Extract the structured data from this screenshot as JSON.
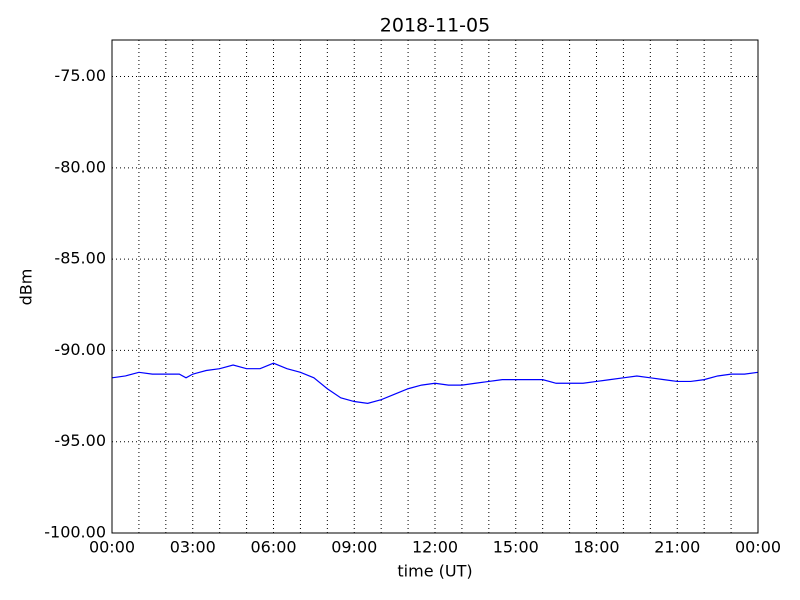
{
  "chart_data": {
    "type": "line",
    "title": "2018-11-05",
    "x_label": "time (UT)",
    "y_label": "dBm",
    "x": [
      0,
      0.5,
      1,
      1.5,
      2,
      2.5,
      2.75,
      3,
      3.25,
      3.5,
      4,
      4.5,
      5,
      5.5,
      6,
      6.5,
      7,
      7.5,
      8,
      8.5,
      9,
      9.5,
      10,
      10.5,
      11,
      11.5,
      12,
      12.5,
      13,
      13.5,
      14,
      14.5,
      15,
      15.5,
      16,
      16.5,
      17,
      17.5,
      18,
      18.5,
      19,
      19.5,
      20,
      20.5,
      21,
      21.5,
      22,
      22.5,
      23,
      23.5,
      24
    ],
    "series": [
      {
        "name": "dBm",
        "color": "#0000ff",
        "values": [
          -91.5,
          -91.4,
          -91.2,
          -91.3,
          -91.3,
          -91.3,
          -91.5,
          -91.3,
          -91.2,
          -91.1,
          -91.0,
          -90.8,
          -91.0,
          -91.0,
          -90.7,
          -91.0,
          -91.2,
          -91.5,
          -92.1,
          -92.6,
          -92.8,
          -92.9,
          -92.7,
          -92.4,
          -92.1,
          -91.9,
          -91.8,
          -91.9,
          -91.9,
          -91.8,
          -91.7,
          -91.6,
          -91.6,
          -91.6,
          -91.6,
          -91.8,
          -91.8,
          -91.8,
          -91.7,
          -91.6,
          -91.5,
          -91.4,
          -91.5,
          -91.6,
          -91.7,
          -91.7,
          -91.6,
          -91.4,
          -91.3,
          -91.3,
          -91.2
        ]
      }
    ],
    "xlim": [
      0,
      24
    ],
    "ylim": [
      -100,
      -73
    ],
    "xticks": [
      {
        "value": 0,
        "label": "00:00"
      },
      {
        "value": 3,
        "label": "03:00"
      },
      {
        "value": 6,
        "label": "06:00"
      },
      {
        "value": 9,
        "label": "09:00"
      },
      {
        "value": 12,
        "label": "12:00"
      },
      {
        "value": 15,
        "label": "15:00"
      },
      {
        "value": 18,
        "label": "18:00"
      },
      {
        "value": 21,
        "label": "21:00"
      },
      {
        "value": 24,
        "label": "00:00"
      }
    ],
    "x_minor_ticks": [
      1,
      2,
      4,
      5,
      7,
      8,
      10,
      11,
      13,
      14,
      16,
      17,
      19,
      20,
      22,
      23
    ],
    "yticks": [
      {
        "value": -100,
        "label": "-100.00"
      },
      {
        "value": -95,
        "label": "-95.00"
      },
      {
        "value": -90,
        "label": "-90.00"
      },
      {
        "value": -85,
        "label": "-85.00"
      },
      {
        "value": -80,
        "label": "-80.00"
      },
      {
        "value": -75,
        "label": "-75.00"
      }
    ],
    "grid": true
  }
}
